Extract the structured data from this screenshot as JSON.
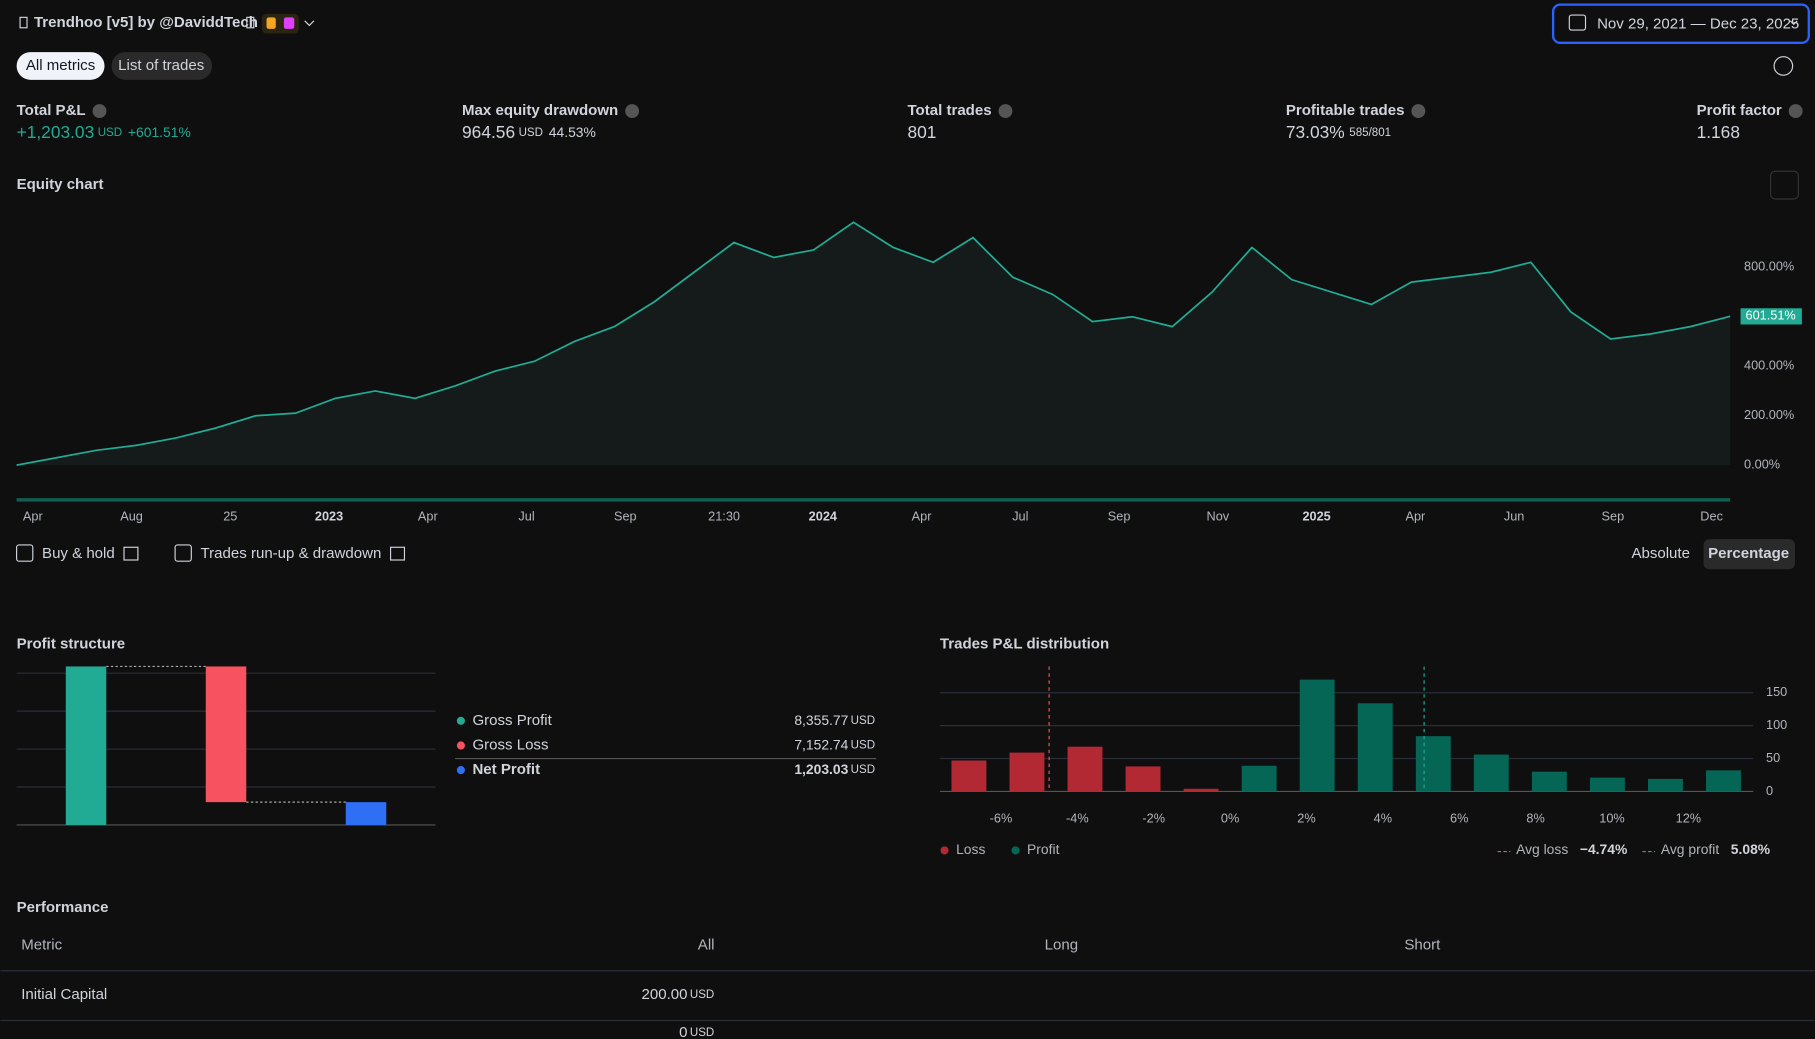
{
  "header": {
    "strategy_title": "Trendhoo [v5] by @DaviddTech",
    "date_range": "Nov 29, 2021 — Dec 23, 2025"
  },
  "tabs": [
    "All metrics",
    "List of trades"
  ],
  "metrics": [
    {
      "label": "Total P&L",
      "value": "+1,203.03",
      "unit": "USD",
      "extra": "+601.51%"
    },
    {
      "label": "Max equity drawdown",
      "value": "964.56",
      "unit": "USD",
      "extra": "44.53%"
    },
    {
      "label": "Total trades",
      "value": "801"
    },
    {
      "label": "Profitable trades",
      "value": "73.03%",
      "extra": "585/801"
    },
    {
      "label": "Profit factor",
      "value": "1.168"
    }
  ],
  "toggles": [
    "Buy & hold",
    "Trades run-up & drawdown"
  ],
  "modes": [
    "Absolute",
    "Percentage"
  ],
  "chart_data": [
    {
      "type": "line",
      "title": "Equity chart",
      "color": "#22ab94",
      "values": [
        0,
        30,
        60,
        80,
        110,
        150,
        200,
        210,
        270,
        300,
        270,
        320,
        380,
        420,
        500,
        560,
        660,
        780,
        900,
        840,
        870,
        982,
        880,
        820,
        920,
        760,
        690,
        580,
        600,
        560,
        700,
        880,
        750,
        700,
        650,
        740,
        760,
        780,
        820,
        620,
        510,
        530,
        560,
        601.51
      ],
      "x_tick_labels": [
        "Apr",
        "Aug",
        "25",
        "2023",
        "Apr",
        "Jul",
        "Sep",
        "21:30",
        "2024",
        "Apr",
        "Jul",
        "Sep",
        "Nov",
        "2025",
        "Apr",
        "Jun",
        "Sep",
        "Dec"
      ],
      "ylim": [
        0,
        1062
      ],
      "yticks": [
        {
          "value": 0,
          "label": "0.00%"
        },
        {
          "value": 200,
          "label": "200.00%"
        },
        {
          "value": 400,
          "label": "400.00%"
        },
        {
          "value": 800,
          "label": "800.00%"
        }
      ],
      "current_value": {
        "value": 601.51,
        "label": "601.51%"
      }
    },
    {
      "type": "waterfall",
      "title": "Profit structure",
      "categories": [
        "Gross Profit",
        "Gross Loss",
        "Net Profit"
      ],
      "values": [
        8355.77,
        7152.74,
        1203.03
      ],
      "value_labels": [
        "8,355.77",
        "7,152.74",
        "1,203.03"
      ],
      "unit": "USD",
      "colors": [
        "#22ab94",
        "#f7525f",
        "#2f6ff5"
      ],
      "ylim": [
        0,
        8355.77
      ],
      "yticks": [
        0,
        2000,
        4000,
        6000,
        8000
      ],
      "grid": true
    },
    {
      "type": "histogram",
      "title": "Trades P&L distribution",
      "bins": [
        -7.6,
        -6.08,
        -4.56,
        -3.04,
        -1.52,
        0,
        1.52,
        3.04,
        4.56,
        6.08,
        7.6,
        9.12,
        10.64,
        12.16,
        13.68
      ],
      "series": [
        {
          "name": "Loss",
          "color": "#b22833",
          "values": [
            47,
            59,
            68,
            38,
            4,
            null,
            null,
            null,
            null,
            null,
            null,
            null,
            null,
            null
          ]
        },
        {
          "name": "Profit",
          "color": "#056656",
          "values": [
            null,
            null,
            null,
            null,
            null,
            39,
            170,
            134,
            84,
            56,
            30,
            21,
            19,
            32
          ]
        }
      ],
      "xlim": [
        -7.6,
        13.7
      ],
      "xticks": [
        {
          "value": -6,
          "label": "-6%"
        },
        {
          "value": -4,
          "label": "-4%"
        },
        {
          "value": -2,
          "label": "-2%"
        },
        {
          "value": 0,
          "label": "0%"
        },
        {
          "value": 2,
          "label": "2%"
        },
        {
          "value": 4,
          "label": "4%"
        },
        {
          "value": 6,
          "label": "6%"
        },
        {
          "value": 8,
          "label": "8%"
        },
        {
          "value": 10,
          "label": "10%"
        },
        {
          "value": 12,
          "label": "12%"
        }
      ],
      "ylim": [
        0,
        190
      ],
      "yticks": [
        0,
        50,
        100,
        150
      ],
      "grid": true,
      "avg_lines": [
        {
          "name": "Avg loss",
          "value": -4.74,
          "label": "−4.74%",
          "color": "#f7525f"
        },
        {
          "name": "Avg profit",
          "value": 5.08,
          "label": "5.08%",
          "color": "#22ab94"
        }
      ]
    }
  ],
  "performance": {
    "title": "Performance",
    "columns": [
      "Metric",
      "All",
      "Long",
      "Short"
    ],
    "rows": [
      {
        "metric": "Initial Capital",
        "all": "200.00",
        "unit": "USD"
      },
      {
        "all": "0",
        "unit": "USD"
      }
    ]
  }
}
